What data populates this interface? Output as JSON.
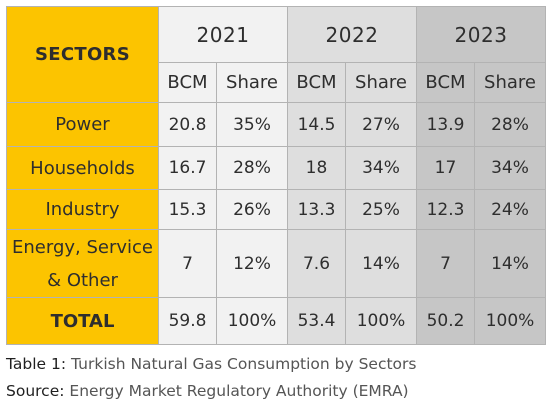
{
  "chart_data": {
    "type": "table",
    "title": "",
    "corner_header": "SECTORS",
    "years": [
      "2021",
      "2022",
      "2023"
    ],
    "subheaders": [
      "BCM",
      "Share"
    ],
    "rows": [
      {
        "label": "Power",
        "values": [
          "20.8",
          "35%",
          "14.5",
          "27%",
          "13.9",
          "28%"
        ]
      },
      {
        "label": "Households",
        "values": [
          "16.7",
          "28%",
          "18",
          "34%",
          "17",
          "34%"
        ]
      },
      {
        "label": "Industry",
        "values": [
          "15.3",
          "26%",
          "13.3",
          "25%",
          "12.3",
          "24%"
        ]
      },
      {
        "label": "Energy, Service & Other",
        "label_line1": "Energy, Service",
        "label_line2": "& Other",
        "values": [
          "7",
          "12%",
          "7.6",
          "14%",
          "7",
          "14%"
        ]
      }
    ],
    "total": {
      "label": "TOTAL",
      "values": [
        "59.8",
        "100%",
        "53.4",
        "100%",
        "50.2",
        "100%"
      ]
    }
  },
  "caption": {
    "table_prefix": "Table 1:",
    "table_text": "Turkish Natural Gas Consumption by Sectors",
    "source_prefix": "Source:",
    "source_text": "Energy Market Regulatory Authority (EMRA)"
  },
  "colors": {
    "sector_column": "#fcc400",
    "year_2021": "#f2f2f2",
    "year_2022": "#dedede",
    "year_2023": "#c6c6c6",
    "border": "#b3b3b3"
  }
}
